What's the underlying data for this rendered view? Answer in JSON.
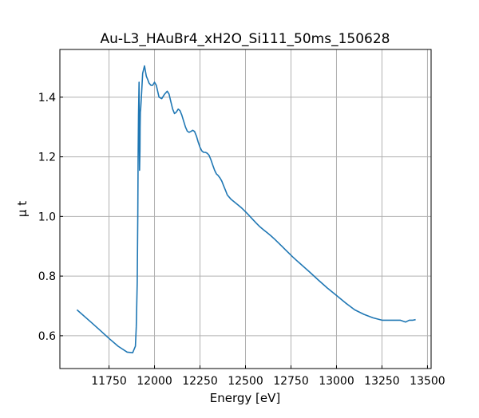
{
  "figure": {
    "title": "Au-L3_HAuBr4_xH2O_Si111_50ms_150628",
    "xlabel": "Energy [eV]",
    "ylabel": "μ t"
  },
  "colors": {
    "line": "#1f77b4",
    "grid": "#b0b0b0",
    "axes": "#000000",
    "background": "#ffffff"
  },
  "chart_data": {
    "type": "line",
    "title": "Au-L3_HAuBr4_xH2O_Si111_50ms_150628",
    "xlabel": "Energy [eV]",
    "ylabel": "μ t",
    "xlim": [
      11480,
      13520
    ],
    "ylim": [
      0.49,
      1.56
    ],
    "xticks": [
      11750,
      12000,
      12250,
      12500,
      12750,
      13000,
      13250,
      13500
    ],
    "yticks": [
      0.6,
      0.8,
      1.0,
      1.2,
      1.4
    ],
    "xtick_labels": [
      "11750",
      "12000",
      "12250",
      "12500",
      "12750",
      "13000",
      "13250",
      "13500"
    ],
    "ytick_labels": [
      "0.6",
      "0.8",
      "1.0",
      "1.2",
      "1.4"
    ],
    "grid": true,
    "legend": "none",
    "series": [
      {
        "x": [
          11574,
          11650,
          11700,
          11750,
          11800,
          11850,
          11880,
          11895,
          11900,
          11905,
          11908,
          11910,
          11912,
          11915,
          11918,
          11920,
          11921,
          11922,
          11924,
          11928,
          11935,
          11945,
          11955,
          11962,
          11970,
          11980,
          11990,
          12000,
          12010,
          12025,
          12040,
          12055,
          12070,
          12080,
          12090,
          12100,
          12110,
          12120,
          12130,
          12140,
          12150,
          12160,
          12170,
          12180,
          12190,
          12200,
          12210,
          12220,
          12230,
          12240,
          12250,
          12260,
          12270,
          12280,
          12290,
          12300,
          12310,
          12320,
          12330,
          12340,
          12350,
          12360,
          12370,
          12380,
          12390,
          12400,
          12420,
          12440,
          12460,
          12480,
          12500,
          12520,
          12540,
          12560,
          12580,
          12600,
          12620,
          12640,
          12660,
          12680,
          12700,
          12720,
          12740,
          12760,
          12780,
          12800,
          12850,
          12900,
          12950,
          13000,
          13050,
          13100,
          13150,
          13200,
          13250,
          13300,
          13350,
          13380,
          13400,
          13420,
          13435
        ],
        "y": [
          0.687,
          0.646,
          0.619,
          0.591,
          0.565,
          0.545,
          0.543,
          0.565,
          0.63,
          0.78,
          1.0,
          1.2,
          1.34,
          1.45,
          1.155,
          1.22,
          1.3,
          1.35,
          1.36,
          1.4,
          1.48,
          1.505,
          1.47,
          1.46,
          1.447,
          1.44,
          1.44,
          1.45,
          1.44,
          1.4,
          1.395,
          1.41,
          1.42,
          1.41,
          1.385,
          1.36,
          1.345,
          1.35,
          1.36,
          1.355,
          1.34,
          1.32,
          1.3,
          1.286,
          1.282,
          1.285,
          1.289,
          1.285,
          1.27,
          1.25,
          1.232,
          1.22,
          1.215,
          1.215,
          1.212,
          1.205,
          1.19,
          1.172,
          1.155,
          1.143,
          1.137,
          1.129,
          1.118,
          1.103,
          1.088,
          1.072,
          1.058,
          1.048,
          1.038,
          1.028,
          1.016,
          1.003,
          0.99,
          0.977,
          0.965,
          0.955,
          0.945,
          0.935,
          0.924,
          0.912,
          0.9,
          0.888,
          0.876,
          0.864,
          0.853,
          0.842,
          0.815,
          0.787,
          0.76,
          0.735,
          0.71,
          0.687,
          0.672,
          0.66,
          0.652,
          0.652,
          0.652,
          0.646,
          0.652,
          0.652,
          0.654
        ]
      }
    ]
  }
}
